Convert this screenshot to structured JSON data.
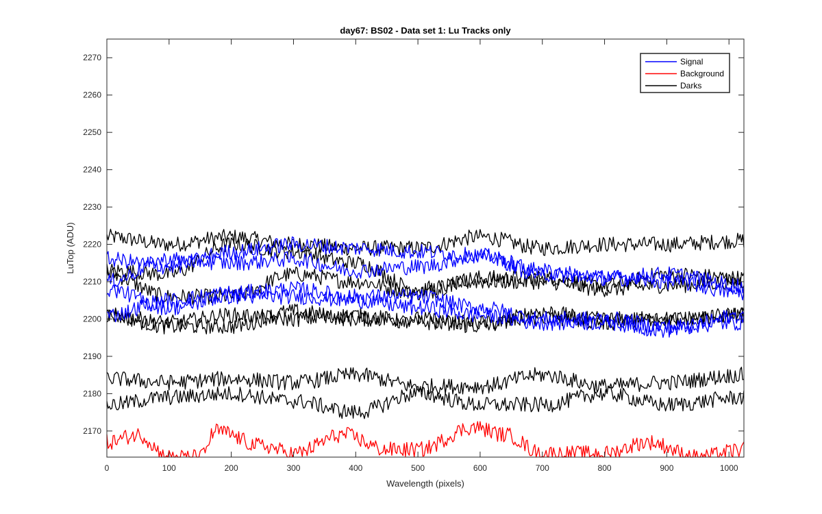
{
  "chart_data": {
    "type": "line",
    "title": "day67: BS02 - Data set 1: Lu Tracks only",
    "xlabel": "Wavelength (pixels)",
    "ylabel": "LuTop (ADU)",
    "xlim": [
      0,
      1024
    ],
    "ylim": [
      2163,
      2275
    ],
    "xticks": [
      0,
      100,
      200,
      300,
      400,
      500,
      600,
      700,
      800,
      900,
      1000
    ],
    "yticks": [
      2170,
      2180,
      2190,
      2200,
      2210,
      2220,
      2230,
      2240,
      2250,
      2260,
      2270
    ],
    "grid": false,
    "legend": {
      "placement": "top-right",
      "entries": [
        {
          "name": "Signal",
          "color": "#0000ff"
        },
        {
          "name": "Background",
          "color": "#ff0000"
        },
        {
          "name": "Darks",
          "color": "#000000"
        }
      ]
    },
    "series": [
      {
        "group": "Signal",
        "color": "#0000ff",
        "x": [
          0,
          100,
          200,
          300,
          400,
          500,
          600,
          700,
          800,
          900,
          1024
        ],
        "y": [
          2216,
          2214,
          2218,
          2220,
          2219,
          2218,
          2217,
          2212,
          2211,
          2212,
          2209
        ]
      },
      {
        "group": "Signal",
        "color": "#0000ff",
        "x": [
          0,
          100,
          200,
          300,
          400,
          500,
          600,
          700,
          800,
          900,
          1024
        ],
        "y": [
          2210,
          2216,
          2215,
          2216,
          2213,
          2214,
          2217,
          2213,
          2211,
          2210,
          2207
        ]
      },
      {
        "group": "Signal",
        "color": "#0000ff",
        "x": [
          0,
          100,
          200,
          300,
          400,
          500,
          600,
          700,
          800,
          900,
          1024
        ],
        "y": [
          2201,
          2205,
          2207,
          2208,
          2206,
          2206,
          2203,
          2200,
          2200,
          2198,
          2199
        ]
      },
      {
        "group": "Signal",
        "color": "#0000ff",
        "x": [
          0,
          100,
          200,
          300,
          400,
          500,
          600,
          700,
          800,
          900,
          1024
        ],
        "y": [
          2208,
          2203,
          2206,
          2206,
          2205,
          2203,
          2201,
          2199,
          2199,
          2197,
          2201
        ]
      },
      {
        "group": "Background",
        "color": "#ff0000",
        "x": [
          0,
          50,
          100,
          150,
          175,
          250,
          300,
          380,
          450,
          500,
          590,
          640,
          700,
          800,
          870,
          950,
          1024
        ],
        "y": [
          2167,
          2169,
          2163,
          2163,
          2170,
          2166,
          2164,
          2169,
          2165,
          2165,
          2171,
          2169,
          2164,
          2164,
          2167,
          2163,
          2165
        ]
      },
      {
        "group": "Darks",
        "color": "#000000",
        "x": [
          0,
          100,
          200,
          300,
          400,
          500,
          600,
          700,
          800,
          900,
          1024
        ],
        "y": [
          2222,
          2220,
          2222,
          2220,
          2219,
          2219,
          2222,
          2219,
          2220,
          2220,
          2221
        ]
      },
      {
        "group": "Darks",
        "color": "#000000",
        "x": [
          0,
          100,
          200,
          300,
          400,
          500,
          600,
          700,
          800,
          900,
          1024
        ],
        "y": [
          2212,
          2206,
          2206,
          2212,
          2210,
          2207,
          2211,
          2211,
          2209,
          2212,
          2211
        ]
      },
      {
        "group": "Darks",
        "color": "#000000",
        "x": [
          0,
          100,
          200,
          300,
          400,
          500,
          600,
          700,
          800,
          900,
          1024
        ],
        "y": [
          2213,
          2212,
          2220,
          2218,
          2215,
          2208,
          2210,
          2210,
          2208,
          2209,
          2210
        ]
      },
      {
        "group": "Darks",
        "color": "#000000",
        "x": [
          0,
          100,
          200,
          300,
          400,
          500,
          600,
          700,
          800,
          900,
          1024
        ],
        "y": [
          2201,
          2198,
          2198,
          2202,
          2200,
          2200,
          2198,
          2202,
          2199,
          2200,
          2201
        ]
      },
      {
        "group": "Darks",
        "color": "#000000",
        "x": [
          0,
          100,
          200,
          300,
          400,
          500,
          600,
          700,
          800,
          900,
          1024
        ],
        "y": [
          2201,
          2199,
          2201,
          2200,
          2201,
          2199,
          2199,
          2200,
          2200,
          2200,
          2201
        ]
      },
      {
        "group": "Darks",
        "color": "#000000",
        "x": [
          0,
          100,
          200,
          300,
          400,
          500,
          600,
          700,
          800,
          900,
          1024
        ],
        "y": [
          2184,
          2183,
          2184,
          2183,
          2185,
          2182,
          2182,
          2185,
          2182,
          2183,
          2185
        ]
      },
      {
        "group": "Darks",
        "color": "#000000",
        "x": [
          0,
          100,
          200,
          300,
          400,
          500,
          600,
          700,
          800,
          900,
          1024
        ],
        "y": [
          2177,
          2179,
          2180,
          2178,
          2175,
          2180,
          2177,
          2177,
          2180,
          2177,
          2179
        ]
      }
    ]
  }
}
